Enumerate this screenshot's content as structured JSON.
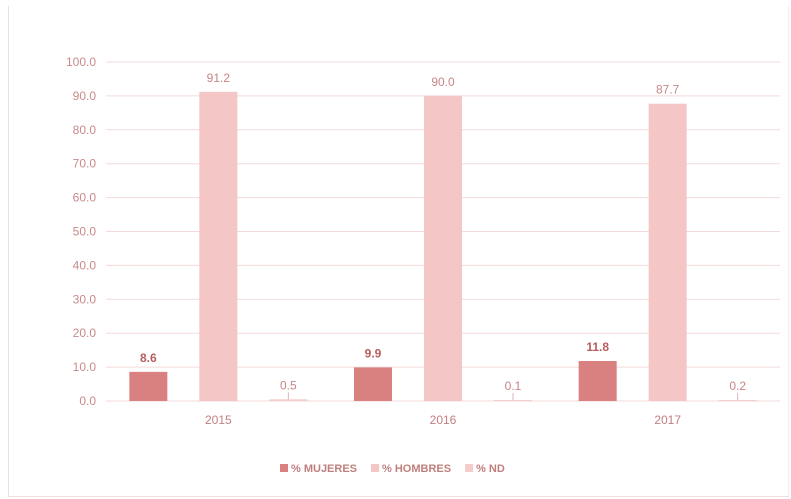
{
  "chart_data": {
    "type": "bar",
    "categories": [
      "2015",
      "2016",
      "2017"
    ],
    "series": [
      {
        "name": "% MUJERES",
        "values": [
          8.6,
          9.9,
          11.8
        ],
        "color": "#d98080"
      },
      {
        "name": "% HOMBRES",
        "values": [
          91.2,
          90.0,
          87.7
        ],
        "color": "#f4c6c6"
      },
      {
        "name": "% ND",
        "values": [
          0.5,
          0.1,
          0.2
        ],
        "color": "#f4cccc"
      }
    ],
    "value_labels": [
      [
        "8.6",
        "9.9",
        "11.8"
      ],
      [
        "91.2",
        "90.0",
        "87.7"
      ],
      [
        "0.5",
        "0.1",
        "0.2"
      ]
    ],
    "yticks": [
      "0.0",
      "10.0",
      "20.0",
      "30.0",
      "40.0",
      "50.0",
      "60.0",
      "70.0",
      "80.0",
      "90.0",
      "100.0"
    ],
    "ylim": [
      0,
      100
    ],
    "title": "",
    "xlabel": "",
    "ylabel": "",
    "grid": true,
    "legend_position": "bottom",
    "colors": {
      "grid": "#f3dada",
      "axis_text": "#c98a8a"
    }
  }
}
